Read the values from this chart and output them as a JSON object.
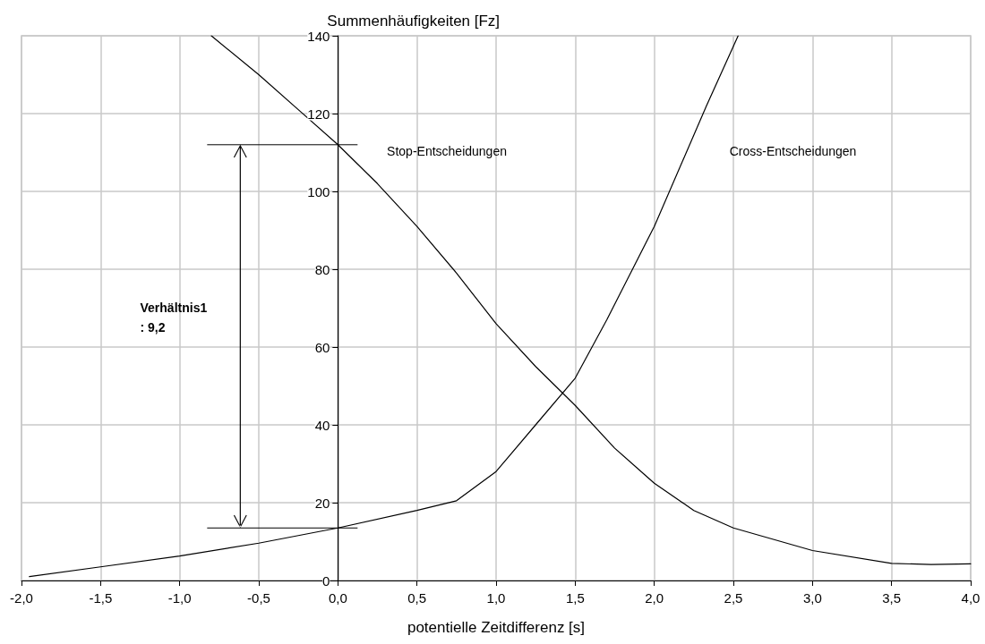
{
  "chart_data": {
    "type": "line",
    "xlabel": "potentielle Zeitdifferenz [s]",
    "ylabel": "Summenhäufigkeiten [Fz]",
    "series": [
      {
        "name": "Stop-Entscheidungen",
        "color": "#000000",
        "x": [
          -0.8,
          -0.5,
          -0.25,
          0,
          0.25,
          0.5,
          0.75,
          1.0,
          1.25,
          1.5,
          1.75,
          2.0,
          2.25,
          2.5,
          3.0,
          3.5,
          3.75,
          4.0
        ],
        "values": [
          140,
          130,
          121,
          112,
          102,
          91,
          79,
          66,
          55,
          45,
          34,
          25,
          18,
          13.5,
          7.7,
          4.4,
          4.1,
          4.3
        ]
      },
      {
        "name": "Cross-Entscheidungen",
        "color": "#000000",
        "x": [
          -1.95,
          -1.5,
          -1.0,
          -0.5,
          0,
          0.5,
          0.75,
          1.0,
          1.25,
          1.5,
          1.7,
          2.0,
          2.33,
          2.53
        ],
        "values": [
          1,
          3.5,
          6.3,
          9.6,
          13.5,
          18,
          20.5,
          28,
          40,
          52,
          67,
          91,
          122,
          140
        ]
      }
    ],
    "xlim": [
      -2,
      4
    ],
    "ylim": [
      0,
      140
    ],
    "xticks": [
      {
        "value": -2,
        "label": "-2,0"
      },
      {
        "value": -1.5,
        "label": "-1,5"
      },
      {
        "value": -1,
        "label": "-1,0"
      },
      {
        "value": -0.5,
        "label": "-0,5"
      },
      {
        "value": 0,
        "label": "0,0"
      },
      {
        "value": 0.5,
        "label": "0,5"
      },
      {
        "value": 1,
        "label": "1,0"
      },
      {
        "value": 1.5,
        "label": "1,5"
      },
      {
        "value": 2,
        "label": "2,0"
      },
      {
        "value": 2.5,
        "label": "2,5"
      },
      {
        "value": 3,
        "label": "3,0"
      },
      {
        "value": 3.5,
        "label": "3,5"
      },
      {
        "value": 4,
        "label": "4,0"
      }
    ],
    "yticks": [
      0,
      20,
      40,
      60,
      80,
      100,
      120,
      140
    ],
    "annotations": [
      "Verhältnis1\n: 9,2"
    ],
    "grid": true,
    "marker": "none",
    "line_style": "solid"
  }
}
